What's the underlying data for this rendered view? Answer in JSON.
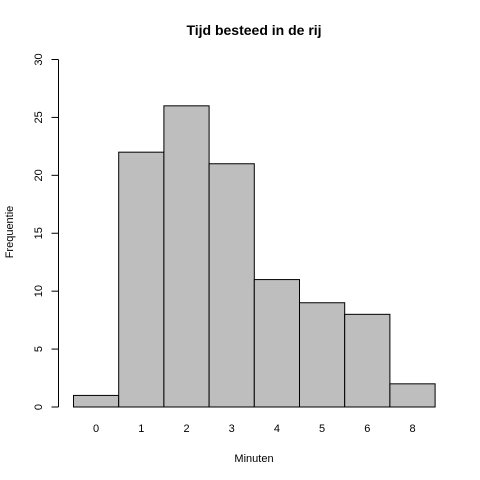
{
  "chart_data": {
    "type": "bar",
    "title": "Tijd besteed in de rij",
    "xlabel": "Minuten",
    "ylabel": "Frequentie",
    "categories": [
      "0",
      "1",
      "2",
      "3",
      "4",
      "5",
      "6",
      "8"
    ],
    "values": [
      1,
      22,
      26,
      21,
      11,
      9,
      8,
      2
    ],
    "ylim": [
      0,
      30
    ],
    "yticks": [
      0,
      5,
      10,
      15,
      20,
      25,
      30
    ],
    "grid": false,
    "bar_color": "#bebebe",
    "bar_border_color": "#000000"
  }
}
